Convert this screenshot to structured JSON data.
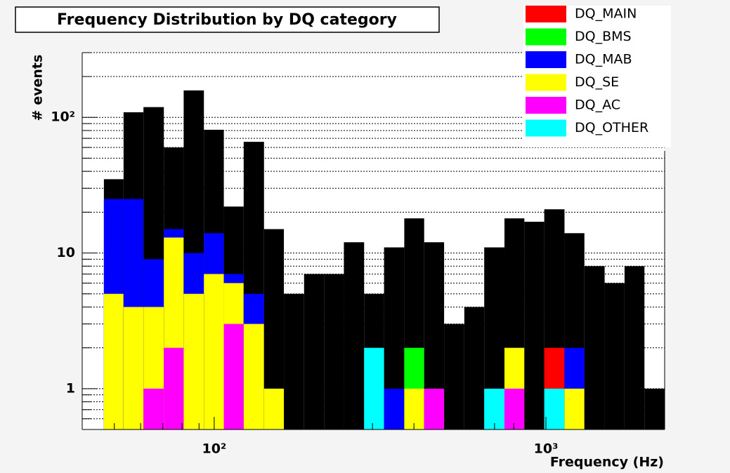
{
  "chart_data": {
    "type": "histogram",
    "title": "Frequency Distribution by DQ category",
    "xlabel": "Frequency (Hz)",
    "ylabel": "# events",
    "xscale": "log",
    "yscale": "log",
    "xlim": [
      40,
      2280
    ],
    "ylim": [
      0.5,
      300
    ],
    "xticks": [
      {
        "value": 100,
        "label": "10²"
      },
      {
        "value": 1000,
        "label": "10³"
      }
    ],
    "xminorticks": [
      50,
      60,
      70,
      80,
      90,
      200,
      300,
      400,
      500,
      600,
      700,
      800,
      900,
      2000
    ],
    "yticks": [
      1,
      10,
      {
        "value": 100,
        "label": "10²"
      }
    ],
    "yminorticks": [
      0.6,
      0.7,
      0.8,
      0.9,
      2,
      3,
      4,
      5,
      6,
      7,
      8,
      9,
      20,
      30,
      40,
      50,
      60,
      70,
      80,
      90,
      200,
      300
    ],
    "grid": true,
    "legend": "top-right",
    "bins": [
      46.5,
      53.3,
      61.2,
      70.5,
      80.9,
      93.1,
      106.9,
      122.7,
      141.3,
      162.2,
      186.6,
      214.3,
      246.0,
      283.1,
      325.1,
      374.1,
      429.5,
      493.2,
      567.5,
      651.6,
      749.9,
      861.0,
      988.5,
      1137.6,
      1306.2,
      1503.1,
      1725.8,
      1981.5,
      2280.4
    ],
    "total": {
      "color": "#000000",
      "values": [
        35,
        109,
        119,
        60,
        158,
        81,
        22,
        66,
        15,
        5,
        7,
        7,
        12,
        5,
        11,
        18,
        12,
        3,
        4,
        11,
        18,
        17,
        21,
        14,
        8,
        6,
        8,
        1
      ]
    },
    "series": [
      {
        "name": "DQ_MAIN",
        "color": "#ff0000",
        "values": [
          0,
          0,
          0,
          0,
          0,
          0,
          0,
          0,
          0,
          0,
          0,
          0,
          0,
          0,
          0,
          0,
          0,
          0,
          0,
          0,
          0,
          0,
          2,
          0,
          0,
          0,
          0,
          0
        ]
      },
      {
        "name": "DQ_BMS",
        "color": "#00ff00",
        "values": [
          0,
          0,
          0,
          0,
          0,
          0,
          0,
          0,
          0,
          0,
          0,
          0,
          0,
          0,
          0,
          2,
          0,
          0,
          0,
          0,
          0,
          0,
          0,
          0,
          0,
          0,
          0,
          0
        ]
      },
      {
        "name": "DQ_MAB",
        "color": "#0000ff",
        "values": [
          25,
          25,
          9,
          15,
          10,
          14,
          7,
          5,
          0,
          0,
          0,
          0,
          0,
          0,
          1,
          0,
          0,
          0,
          0,
          0,
          0,
          0,
          0,
          2,
          0,
          0,
          0,
          0
        ]
      },
      {
        "name": "DQ_SE",
        "color": "#ffff00",
        "values": [
          5,
          4,
          4,
          13,
          5,
          7,
          6,
          3,
          1,
          0,
          0,
          0,
          0,
          0,
          0,
          1,
          0,
          0,
          0,
          0,
          2,
          0,
          0,
          1,
          0,
          0,
          0,
          0
        ]
      },
      {
        "name": "DQ_AC",
        "color": "#ff00ff",
        "values": [
          0,
          0,
          1,
          2,
          0,
          0,
          3,
          0,
          0,
          0,
          0,
          0,
          0,
          0,
          0,
          0,
          1,
          0,
          0,
          0,
          1,
          0,
          0,
          0,
          0,
          0,
          0,
          0
        ]
      },
      {
        "name": "DQ_OTHER",
        "color": "#00ffff",
        "values": [
          0,
          0,
          0,
          0,
          0,
          0,
          0,
          0,
          0,
          0,
          0,
          0,
          0,
          2,
          0,
          0,
          0,
          0,
          0,
          1,
          0,
          0,
          1,
          0,
          0,
          0,
          0,
          0
        ]
      }
    ]
  }
}
